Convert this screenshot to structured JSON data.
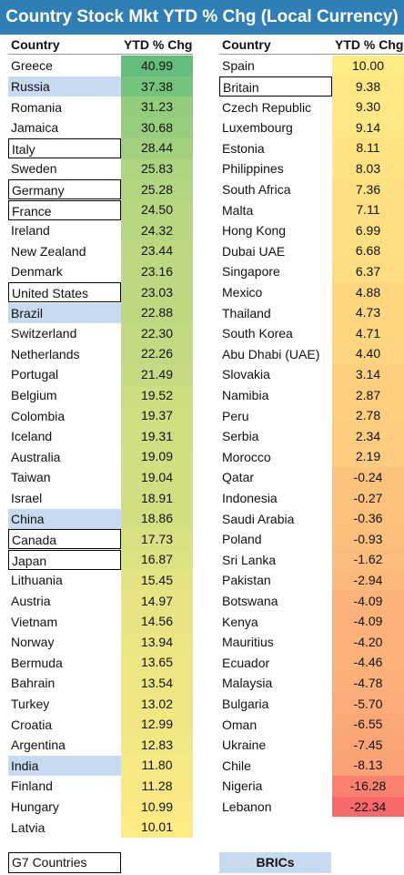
{
  "title": "Country Stock Mkt YTD % Chg (Local Currency)",
  "left": {
    "header_country": "Country",
    "header_value": "YTD % Chg",
    "rows": [
      {
        "country": "Greece",
        "value": "40.99",
        "num": 40.99,
        "group": ""
      },
      {
        "country": "Russia",
        "value": "37.38",
        "num": 37.38,
        "group": "bric"
      },
      {
        "country": "Romania",
        "value": "31.23",
        "num": 31.23,
        "group": ""
      },
      {
        "country": "Jamaica",
        "value": "30.68",
        "num": 30.68,
        "group": ""
      },
      {
        "country": "Italy",
        "value": "28.44",
        "num": 28.44,
        "group": "g7"
      },
      {
        "country": "Sweden",
        "value": "25.83",
        "num": 25.83,
        "group": ""
      },
      {
        "country": "Germany",
        "value": "25.28",
        "num": 25.28,
        "group": "g7"
      },
      {
        "country": "France",
        "value": "24.50",
        "num": 24.5,
        "group": "g7"
      },
      {
        "country": "Ireland",
        "value": "24.32",
        "num": 24.32,
        "group": ""
      },
      {
        "country": "New Zealand",
        "value": "23.44",
        "num": 23.44,
        "group": ""
      },
      {
        "country": "Denmark",
        "value": "23.16",
        "num": 23.16,
        "group": ""
      },
      {
        "country": "United States",
        "value": "23.03",
        "num": 23.03,
        "group": "g7"
      },
      {
        "country": "Brazil",
        "value": "22.88",
        "num": 22.88,
        "group": "bric"
      },
      {
        "country": "Switzerland",
        "value": "22.30",
        "num": 22.3,
        "group": ""
      },
      {
        "country": "Netherlands",
        "value": "22.26",
        "num": 22.26,
        "group": ""
      },
      {
        "country": "Portugal",
        "value": "21.49",
        "num": 21.49,
        "group": ""
      },
      {
        "country": "Belgium",
        "value": "19.52",
        "num": 19.52,
        "group": ""
      },
      {
        "country": "Colombia",
        "value": "19.37",
        "num": 19.37,
        "group": ""
      },
      {
        "country": "Iceland",
        "value": "19.31",
        "num": 19.31,
        "group": ""
      },
      {
        "country": "Australia",
        "value": "19.09",
        "num": 19.09,
        "group": ""
      },
      {
        "country": "Taiwan",
        "value": "19.04",
        "num": 19.04,
        "group": ""
      },
      {
        "country": "Israel",
        "value": "18.91",
        "num": 18.91,
        "group": ""
      },
      {
        "country": "China",
        "value": "18.86",
        "num": 18.86,
        "group": "bric"
      },
      {
        "country": "Canada",
        "value": "17.73",
        "num": 17.73,
        "group": "g7"
      },
      {
        "country": "Japan",
        "value": "16.87",
        "num": 16.87,
        "group": "g7"
      },
      {
        "country": "Lithuania",
        "value": "15.45",
        "num": 15.45,
        "group": ""
      },
      {
        "country": "Austria",
        "value": "14.97",
        "num": 14.97,
        "group": ""
      },
      {
        "country": "Vietnam",
        "value": "14.56",
        "num": 14.56,
        "group": ""
      },
      {
        "country": "Norway",
        "value": "13.94",
        "num": 13.94,
        "group": ""
      },
      {
        "country": "Bermuda",
        "value": "13.65",
        "num": 13.65,
        "group": ""
      },
      {
        "country": "Bahrain",
        "value": "13.54",
        "num": 13.54,
        "group": ""
      },
      {
        "country": "Turkey",
        "value": "13.02",
        "num": 13.02,
        "group": ""
      },
      {
        "country": "Croatia",
        "value": "12.99",
        "num": 12.99,
        "group": ""
      },
      {
        "country": "Argentina",
        "value": "12.83",
        "num": 12.83,
        "group": ""
      },
      {
        "country": "India",
        "value": "11.80",
        "num": 11.8,
        "group": "bric"
      },
      {
        "country": "Finland",
        "value": "11.28",
        "num": 11.28,
        "group": ""
      },
      {
        "country": "Hungary",
        "value": "10.99",
        "num": 10.99,
        "group": ""
      },
      {
        "country": "Latvia",
        "value": "10.01",
        "num": 10.01,
        "group": ""
      }
    ]
  },
  "right": {
    "header_country": "Country",
    "header_value": "YTD % Chg",
    "rows": [
      {
        "country": "Spain",
        "value": "10.00",
        "num": 10.0,
        "group": ""
      },
      {
        "country": "Britain",
        "value": "9.38",
        "num": 9.38,
        "group": "g7"
      },
      {
        "country": "Czech Republic",
        "value": "9.30",
        "num": 9.3,
        "group": ""
      },
      {
        "country": "Luxembourg",
        "value": "9.14",
        "num": 9.14,
        "group": ""
      },
      {
        "country": "Estonia",
        "value": "8.11",
        "num": 8.11,
        "group": ""
      },
      {
        "country": "Philippines",
        "value": "8.03",
        "num": 8.03,
        "group": ""
      },
      {
        "country": "South Africa",
        "value": "7.36",
        "num": 7.36,
        "group": ""
      },
      {
        "country": "Malta",
        "value": "7.11",
        "num": 7.11,
        "group": ""
      },
      {
        "country": "Hong Kong",
        "value": "6.99",
        "num": 6.99,
        "group": ""
      },
      {
        "country": "Dubai UAE",
        "value": "6.68",
        "num": 6.68,
        "group": ""
      },
      {
        "country": "Singapore",
        "value": "6.37",
        "num": 6.37,
        "group": ""
      },
      {
        "country": "Mexico",
        "value": "4.88",
        "num": 4.88,
        "group": ""
      },
      {
        "country": "Thailand",
        "value": "4.73",
        "num": 4.73,
        "group": ""
      },
      {
        "country": "South Korea",
        "value": "4.71",
        "num": 4.71,
        "group": ""
      },
      {
        "country": "Abu Dhabi (UAE)",
        "value": "4.40",
        "num": 4.4,
        "group": ""
      },
      {
        "country": "Slovakia",
        "value": "3.14",
        "num": 3.14,
        "group": ""
      },
      {
        "country": "Namibia",
        "value": "2.87",
        "num": 2.87,
        "group": ""
      },
      {
        "country": "Peru",
        "value": "2.78",
        "num": 2.78,
        "group": ""
      },
      {
        "country": "Serbia",
        "value": "2.34",
        "num": 2.34,
        "group": ""
      },
      {
        "country": "Morocco",
        "value": "2.19",
        "num": 2.19,
        "group": ""
      },
      {
        "country": "Qatar",
        "value": "-0.24",
        "num": -0.24,
        "group": ""
      },
      {
        "country": "Indonesia",
        "value": "-0.27",
        "num": -0.27,
        "group": ""
      },
      {
        "country": "Saudi Arabia",
        "value": "-0.36",
        "num": -0.36,
        "group": ""
      },
      {
        "country": "Poland",
        "value": "-0.93",
        "num": -0.93,
        "group": ""
      },
      {
        "country": "Sri Lanka",
        "value": "-1.62",
        "num": -1.62,
        "group": ""
      },
      {
        "country": "Pakistan",
        "value": "-2.94",
        "num": -2.94,
        "group": ""
      },
      {
        "country": "Botswana",
        "value": "-4.09",
        "num": -4.09,
        "group": ""
      },
      {
        "country": "Kenya",
        "value": "-4.09",
        "num": -4.09,
        "group": ""
      },
      {
        "country": "Mauritius",
        "value": "-4.20",
        "num": -4.2,
        "group": ""
      },
      {
        "country": "Ecuador",
        "value": "-4.46",
        "num": -4.46,
        "group": ""
      },
      {
        "country": "Malaysia",
        "value": "-4.78",
        "num": -4.78,
        "group": ""
      },
      {
        "country": "Bulgaria",
        "value": "-5.70",
        "num": -5.7,
        "group": ""
      },
      {
        "country": "Oman",
        "value": "-6.55",
        "num": -6.55,
        "group": ""
      },
      {
        "country": "Ukraine",
        "value": "-7.45",
        "num": -7.45,
        "group": ""
      },
      {
        "country": "Chile",
        "value": "-8.13",
        "num": -8.13,
        "group": ""
      },
      {
        "country": "Nigeria",
        "value": "-16.28",
        "num": -16.28,
        "group": ""
      },
      {
        "country": "Lebanon",
        "value": "-22.34",
        "num": -22.34,
        "group": ""
      }
    ]
  },
  "legend": {
    "g7_label": "G7 Countries",
    "bric_label": "BRICs"
  },
  "colors": {
    "title_bg": "#2f7fb6",
    "bric_highlight": "#c7daf0",
    "scale_high": "#63be7b",
    "scale_mid": "#ffeb84",
    "scale_low": "#f8696b"
  }
}
